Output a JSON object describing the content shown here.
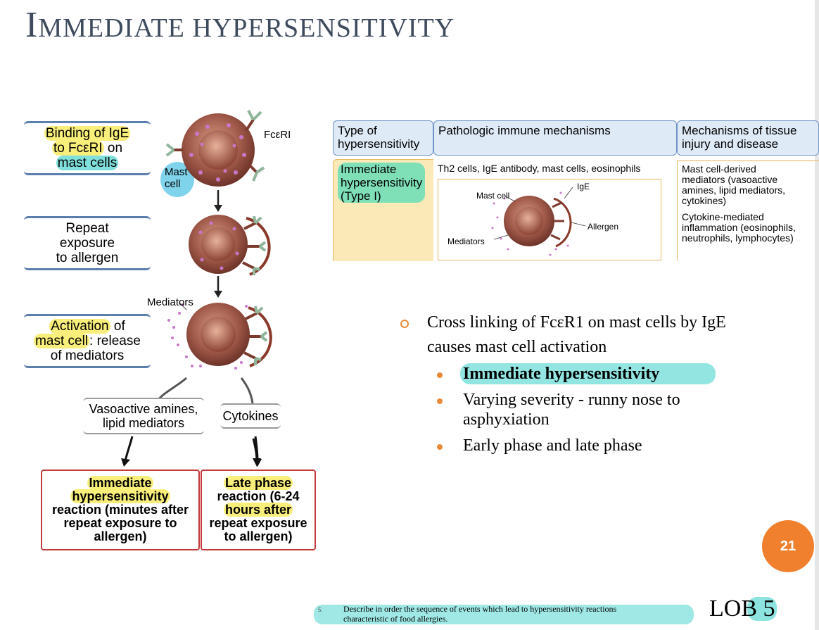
{
  "slide": {
    "title_first": "I",
    "title_rest": "MMEDIATE HYPERSENSITIVITY",
    "page_number": "21",
    "lob_label": "LOB 5",
    "footnote_num": "5.",
    "footnote_line1": "Describe in order the sequence of events which lead to hypersensitivity reactions",
    "footnote_line2": "characteristic of food allergies."
  },
  "flow": {
    "box1": {
      "a": "Binding of IgE",
      "b": "to FcεRI",
      "b2": " on",
      "c": "mast cells"
    },
    "box2": {
      "a": "Repeat",
      "b": "exposure",
      "c": "to allergen"
    },
    "box3": {
      "a": "Activation",
      "a2": " of",
      "b": "mast cell",
      "b2": ": release",
      "c": "of mediators"
    },
    "fceri_label": "FcεRI",
    "mast_cell_label_1": "Mast",
    "mast_cell_label_2": "cell",
    "mediators_label": "Mediators",
    "vaso_1": "Vasoactive amines,",
    "vaso_2": "lipid mediators",
    "cytokines": "Cytokines",
    "imm": {
      "l1": "Immediate",
      "l2": "hypersensitivity",
      "l3": "reaction (minutes after",
      "l4": "repeat exposure to",
      "l5": "allergen)"
    },
    "late": {
      "l1": "Late phase",
      "l2": "reaction (6-24",
      "l3": "hours after",
      "l4": "repeat exposure",
      "l5": "to allergen)"
    }
  },
  "table": {
    "h1a": "Type of",
    "h1b": "hypersensitivity",
    "h2": "Pathologic immune mechanisms",
    "h3a": "Mechanisms of tissue",
    "h3b": "injury and disease",
    "c1a": "Immediate",
    "c1b": "hypersensitivity",
    "c1c": "(Type I)",
    "c2": "Th2 cells, IgE antibody, mast cells, eosinophils",
    "c3a1": "Mast cell-derived",
    "c3a2": "mediators (vasoactive",
    "c3a3": "amines, lipid mediators,",
    "c3a4": "cytokines)",
    "c3b1": "Cytokine-mediated",
    "c3b2": "inflammation (eosinophils,",
    "c3b3": "neutrophils, lymphocytes)",
    "fig_mast": "Mast cell",
    "fig_ige": "IgE",
    "fig_allergen": "Allergen",
    "fig_mediators": "Mediators"
  },
  "bullets": {
    "main_1": "Cross linking of FcεR1 on mast cells by IgE",
    "main_2": "causes mast cell activation",
    "sub1": "Immediate hypersensitivity",
    "sub2a": "Varying severity - runny nose to",
    "sub2b": "asphyxiation",
    "sub3": "Early phase and late phase"
  },
  "colors": {
    "accent": "#f0802e",
    "highlight_yellow": "#f8ee7a",
    "highlight_cyan": "#7fe0dc",
    "header_blue": "#dfeaf7",
    "red_box": "#c43a3a"
  }
}
